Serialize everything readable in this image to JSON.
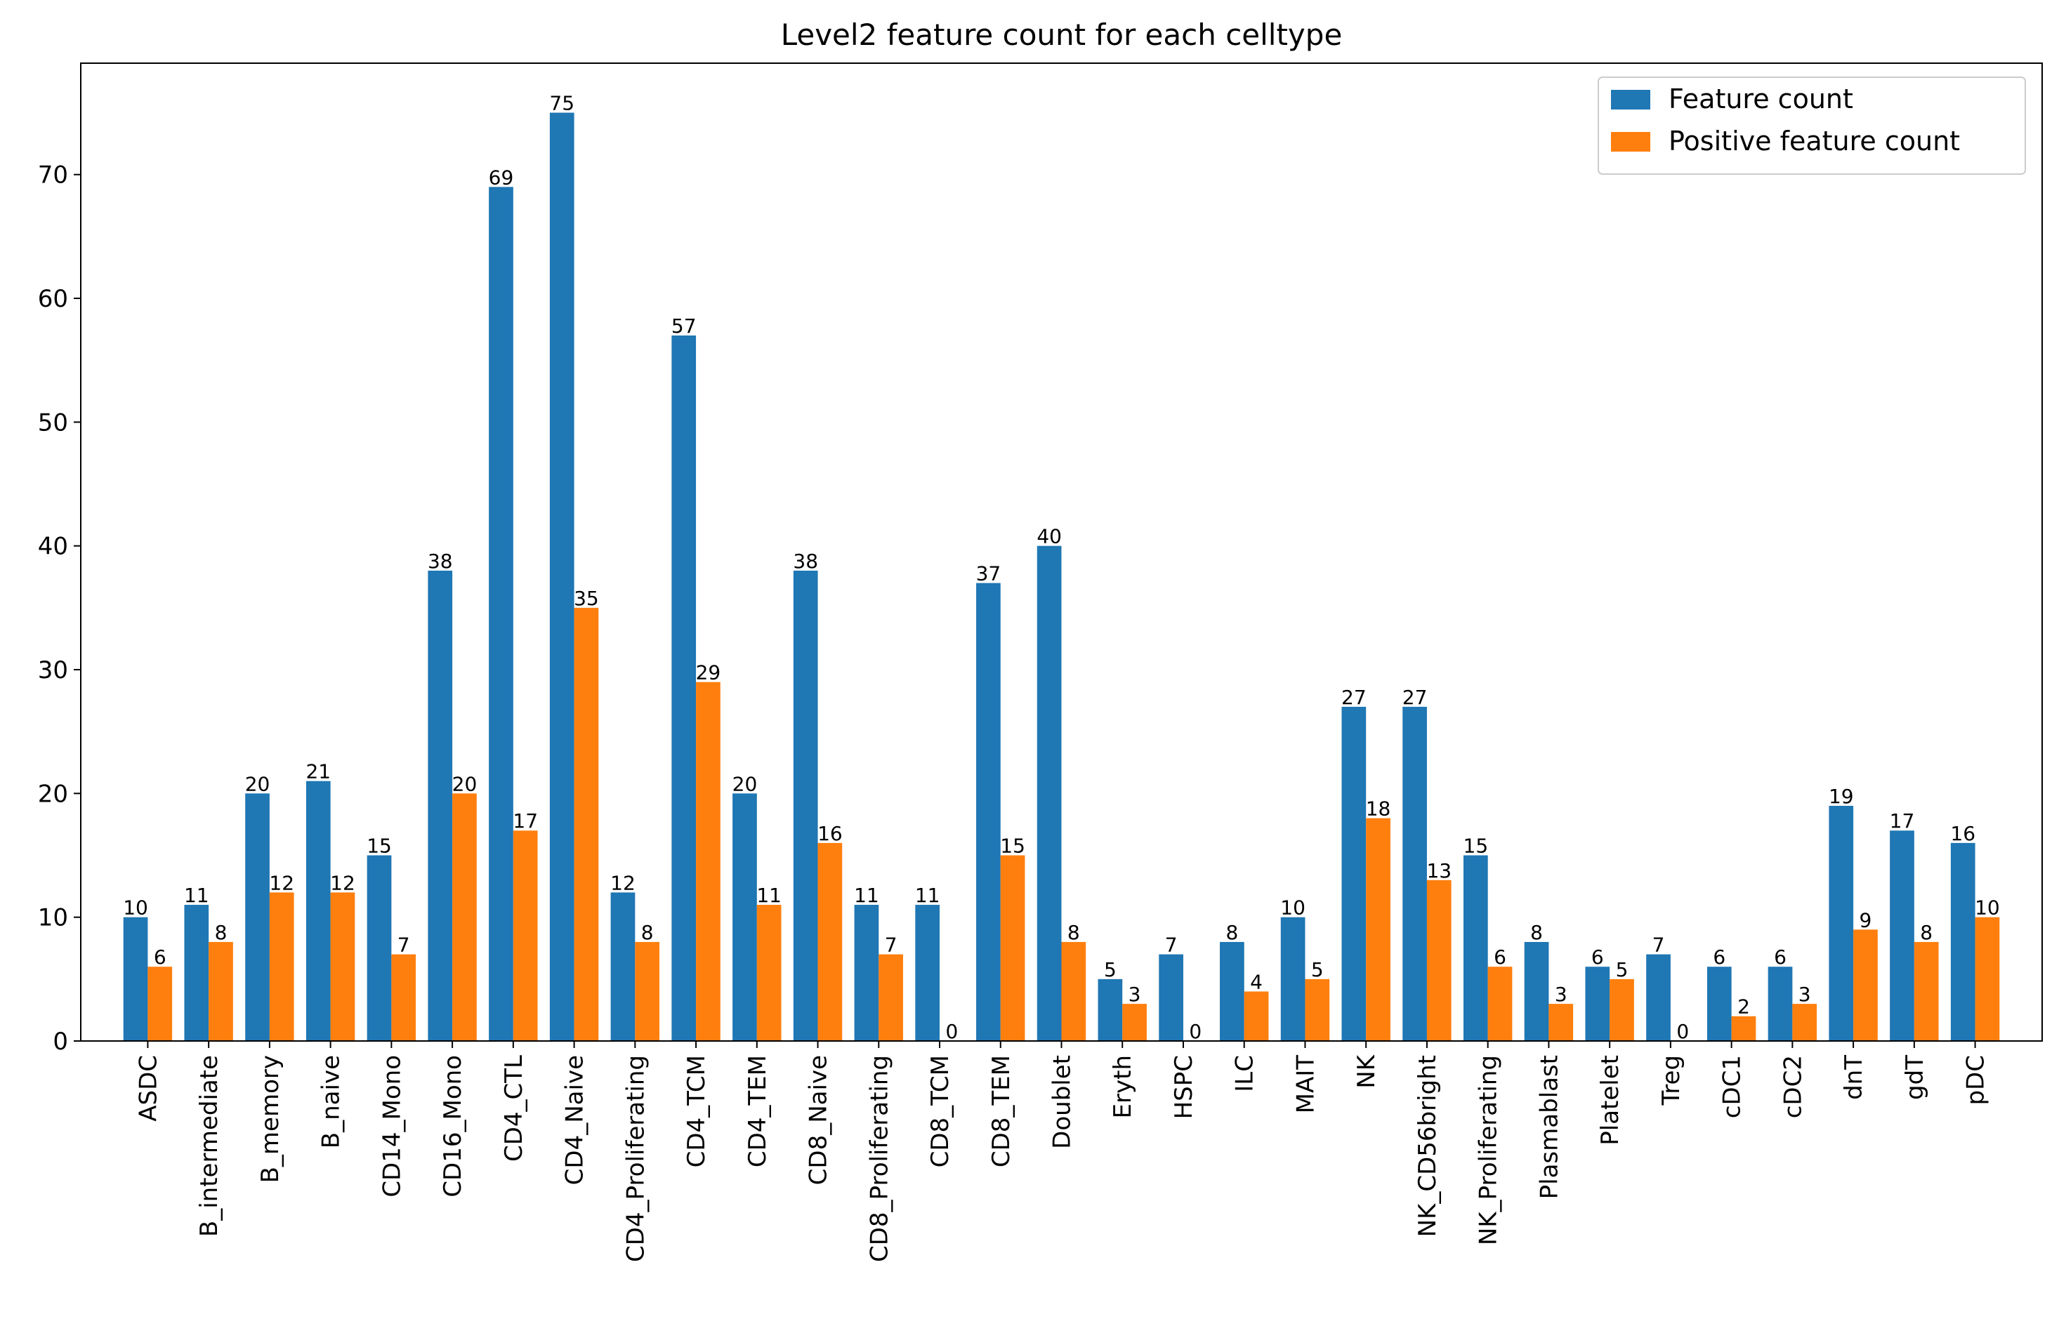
{
  "chart_data": {
    "type": "bar",
    "title": "Level2 feature count for each celltype",
    "xlabel": "",
    "ylabel": "",
    "ylim": [
      0,
      79
    ],
    "yticks": [
      0,
      10,
      20,
      30,
      40,
      50,
      60,
      70
    ],
    "grid": false,
    "legend_position": "top-right",
    "categories": [
      "ASDC",
      "B_intermediate",
      "B_memory",
      "B_naive",
      "CD14_Mono",
      "CD16_Mono",
      "CD4_CTL",
      "CD4_Naive",
      "CD4_Proliferating",
      "CD4_TCM",
      "CD4_TEM",
      "CD8_Naive",
      "CD8_Proliferating",
      "CD8_TCM",
      "CD8_TEM",
      "Doublet",
      "Eryth",
      "HSPC",
      "ILC",
      "MAIT",
      "NK",
      "NK_CD56bright",
      "NK_Proliferating",
      "Plasmablast",
      "Platelet",
      "Treg",
      "cDC1",
      "cDC2",
      "dnT",
      "gdT",
      "pDC"
    ],
    "series": [
      {
        "name": "Feature count",
        "color": "#1f77b4",
        "values": [
          10,
          11,
          20,
          21,
          15,
          38,
          69,
          75,
          12,
          57,
          20,
          38,
          11,
          11,
          37,
          40,
          5,
          7,
          8,
          10,
          27,
          27,
          15,
          8,
          6,
          7,
          6,
          6,
          19,
          17,
          16
        ]
      },
      {
        "name": "Positive feature count",
        "color": "#ff7f0e",
        "values": [
          6,
          8,
          12,
          12,
          7,
          20,
          17,
          35,
          8,
          29,
          11,
          16,
          7,
          0,
          15,
          8,
          3,
          0,
          4,
          5,
          18,
          13,
          6,
          3,
          5,
          0,
          2,
          3,
          9,
          8,
          10
        ]
      }
    ]
  }
}
